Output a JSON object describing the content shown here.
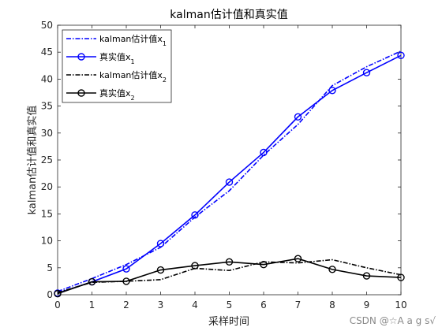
{
  "chart_data": {
    "type": "line",
    "title": "kalman估计值和真实值",
    "xlabel": "采样时间",
    "ylabel": "kalman估计值和真实值",
    "xlim": [
      0,
      10
    ],
    "ylim": [
      0,
      50
    ],
    "xticks": [
      0,
      1,
      2,
      3,
      4,
      5,
      6,
      7,
      8,
      9,
      10
    ],
    "yticks": [
      0,
      5,
      10,
      15,
      20,
      25,
      30,
      35,
      40,
      45,
      50
    ],
    "grid": false,
    "legend_position": "top-left",
    "x": [
      0,
      1,
      2,
      3,
      4,
      5,
      6,
      7,
      8,
      9,
      10
    ],
    "series": [
      {
        "name": "kalman估计值x",
        "subscript": "1",
        "color": "#0000ff",
        "dash": "dashdot",
        "marker": "none",
        "values": [
          0.6,
          3.0,
          5.6,
          8.8,
          14.4,
          19.3,
          25.9,
          31.6,
          38.8,
          42.3,
          45.2
        ]
      },
      {
        "name": "真实值x",
        "subscript": "1",
        "color": "#0000ff",
        "dash": "solid",
        "marker": "circle",
        "values": [
          0.3,
          2.4,
          4.8,
          9.5,
          14.8,
          20.9,
          26.4,
          33.0,
          37.9,
          41.2,
          44.4
        ]
      },
      {
        "name": "kalman估计值x",
        "subscript": "2",
        "color": "#000000",
        "dash": "dashdot",
        "marker": "none",
        "values": [
          0.4,
          2.3,
          2.5,
          2.8,
          4.9,
          4.5,
          6.1,
          5.9,
          6.5,
          5.0,
          3.7
        ]
      },
      {
        "name": "真实值x",
        "subscript": "2",
        "color": "#000000",
        "dash": "solid",
        "marker": "circle",
        "values": [
          0.2,
          2.4,
          2.5,
          4.6,
          5.4,
          6.1,
          5.6,
          6.7,
          4.7,
          3.5,
          3.2
        ]
      }
    ]
  },
  "watermark": "CSDN @☆A a g s√"
}
